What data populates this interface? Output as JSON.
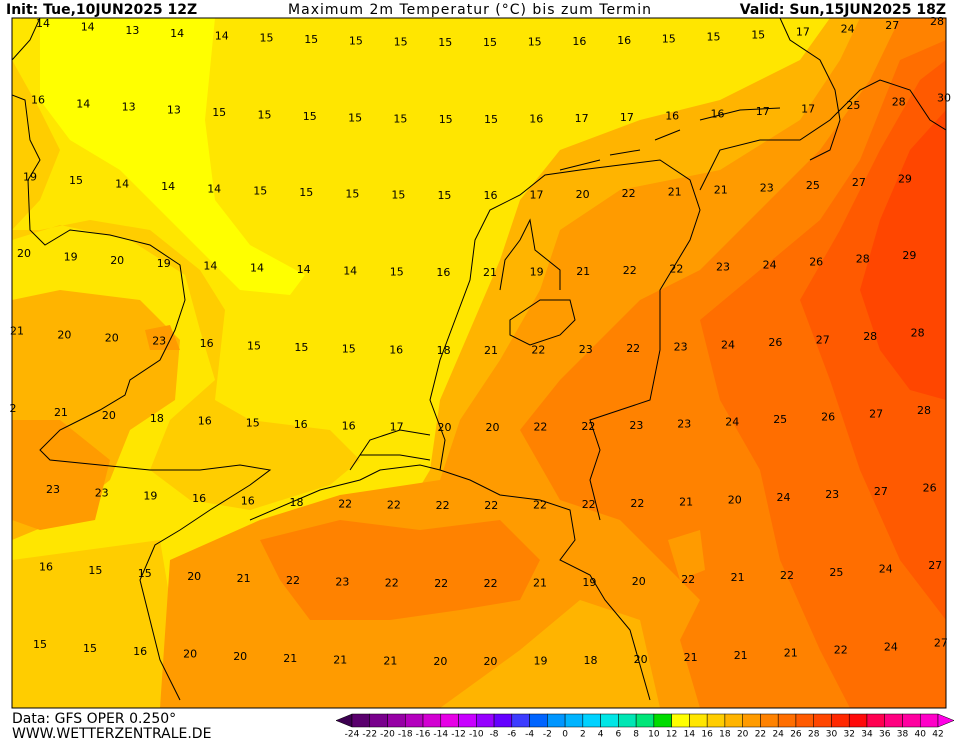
{
  "header": {
    "init": "Init: Tue,10JUN2025 12Z",
    "title": "Maximum 2m Temperatur (°C) bis zum Termin",
    "valid": "Valid: Sun,15JUN2025 18Z"
  },
  "footer": {
    "source": "Data: GFS OPER 0.250°",
    "site": "WWW.WETTERZENTRALE.DE"
  },
  "map": {
    "temperature_rows": [
      [
        14,
        14,
        13,
        14,
        14,
        15,
        15,
        15,
        15,
        15,
        15,
        15,
        16,
        16,
        15,
        15,
        15,
        17,
        24,
        27,
        28
      ],
      [
        16,
        14,
        13,
        13,
        15,
        15,
        15,
        15,
        15,
        15,
        15,
        16,
        17,
        17,
        16,
        16,
        17,
        17,
        25,
        28,
        30
      ],
      [
        19,
        15,
        14,
        14,
        14,
        15,
        15,
        15,
        15,
        15,
        16,
        17,
        20,
        22,
        21,
        21,
        23,
        25,
        27,
        29
      ],
      [
        20,
        19,
        20,
        19,
        14,
        14,
        14,
        14,
        15,
        16,
        21,
        19,
        21,
        22,
        22,
        23,
        24,
        26,
        28,
        29
      ],
      [
        21,
        20,
        20,
        23,
        16,
        15,
        15,
        15,
        16,
        18,
        21,
        22,
        23,
        22,
        23,
        24,
        26,
        27,
        28,
        28
      ],
      [
        2,
        21,
        20,
        18,
        16,
        15,
        16,
        16,
        17,
        20,
        20,
        22,
        22,
        23,
        23,
        24,
        25,
        26,
        27,
        28
      ],
      [
        23,
        23,
        19,
        16,
        16,
        18,
        22,
        22,
        22,
        22,
        22,
        22,
        22,
        21,
        20,
        24,
        23,
        27,
        26
      ],
      [
        16,
        15,
        15,
        20,
        21,
        22,
        23,
        22,
        22,
        22,
        21,
        19,
        20,
        22,
        21,
        22,
        25,
        24,
        27
      ],
      [
        15,
        15,
        16,
        20,
        20,
        21,
        21,
        21,
        20,
        20,
        19,
        18,
        20,
        21,
        21,
        21,
        22,
        24,
        27
      ]
    ]
  },
  "colorbar": {
    "ticks": [
      -24,
      -22,
      -20,
      -18,
      -16,
      -14,
      -12,
      -10,
      -8,
      -6,
      -4,
      -2,
      0,
      2,
      4,
      6,
      8,
      10,
      12,
      14,
      16,
      18,
      20,
      22,
      24,
      26,
      28,
      30,
      32,
      34,
      36,
      38,
      40,
      42
    ],
    "colors": [
      "#3c0050",
      "#5a006e",
      "#78008c",
      "#9600a5",
      "#b400be",
      "#d200d2",
      "#e600e6",
      "#c800ff",
      "#9600ff",
      "#6400ff",
      "#3c3cff",
      "#0064ff",
      "#0096ff",
      "#00b4ff",
      "#00d2ff",
      "#00e6e6",
      "#00e6b4",
      "#00e678",
      "#00dc00",
      "#ffff00",
      "#ffe600",
      "#ffcd00",
      "#ffb400",
      "#ff9b00",
      "#ff8200",
      "#ff6e00",
      "#ff5a00",
      "#ff4600",
      "#ff2800",
      "#ff0a0a",
      "#ff0050",
      "#ff0080",
      "#ff00a0",
      "#ff00c8",
      "#ff00e6"
    ]
  }
}
